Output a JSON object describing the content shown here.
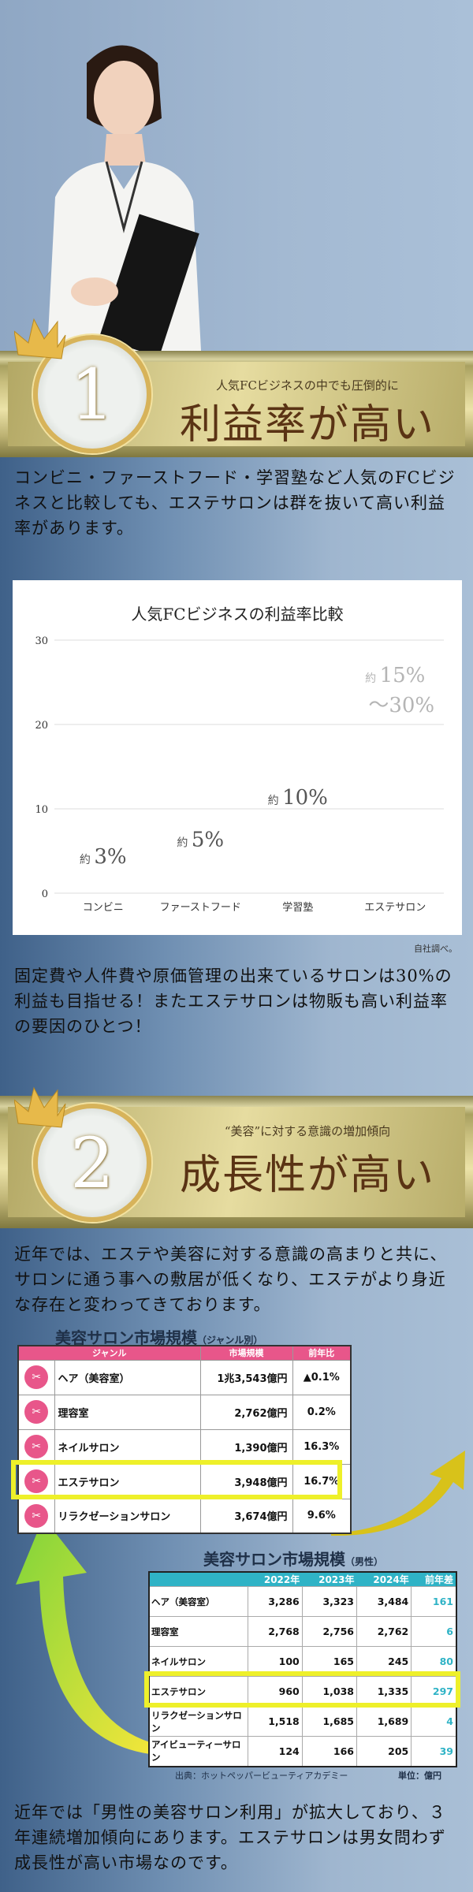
{
  "section1": {
    "number": "1",
    "subtitle": "人気FCビジネスの中でも圧倒的に",
    "title": "利益率が高い",
    "paragraph": "コンビニ・ファーストフード・学習塾など人気のFCビジネスと比較しても、エステサロンは群を抜いて高い利益率があります。",
    "source": "自社調べ。",
    "paragraph2": "固定費や人件費や原価管理の出来ているサロンは30%の利益も目指せる！またエステサロンは物販も高い利益率の要因のひとつ！"
  },
  "chart_data": {
    "type": "bar",
    "title": "人気FCビジネスの利益率比較",
    "categories": [
      "コンビニ",
      "ファーストフード",
      "学習塾",
      "エステサロン"
    ],
    "values": [
      3,
      5,
      10,
      [
        15,
        30
      ]
    ],
    "data_labels": [
      {
        "prefix": "約",
        "value": "3%"
      },
      {
        "prefix": "約",
        "value": "5%"
      },
      {
        "prefix": "約",
        "value": "10%"
      },
      {
        "prefix": "約",
        "value": "15%",
        "value2": "～30%"
      }
    ],
    "ylim": [
      0,
      30
    ],
    "yticks": [
      "0",
      "10",
      "20",
      "30"
    ],
    "grid": true
  },
  "section2": {
    "number": "2",
    "subtitle": "“美容”に対する意識の増加傾向",
    "title": "成長性が高い",
    "paragraph": "近年では、エステや美容に対する意識の高まりと共に、サロンに通う事への敷居が低くなり、エステがより身近な存在と変わってきております。",
    "table1": {
      "title": "美容サロン市場規模",
      "title_note": "（ジャンル別）",
      "headers": [
        "ジャンル",
        "市場規模",
        "前年比"
      ],
      "rows": [
        {
          "icon": "scissors-comb-icon",
          "genre": "ヘア（美容室）",
          "size": "1兆3,543億円",
          "ratio": "▲0.1%"
        },
        {
          "icon": "scissors-comb-icon",
          "genre": "理容室",
          "size": "2,762億円",
          "ratio": "0.2%"
        },
        {
          "icon": "nail-icon",
          "genre": "ネイルサロン",
          "size": "1,390億円",
          "ratio": "16.3%"
        },
        {
          "icon": "face-care-icon",
          "genre": "エステサロン",
          "size": "3,948億円",
          "ratio": "16.7%"
        },
        {
          "icon": "relaxation-icon",
          "genre": "リラクゼーションサロン",
          "size": "3,674億円",
          "ratio": "9.6%"
        }
      ]
    },
    "table2": {
      "title": "美容サロン市場規模",
      "title_note": "（男性）",
      "headers": [
        "",
        "2022年",
        "2023年",
        "2024年",
        "前年差"
      ],
      "rows": [
        [
          "ヘア（美容室）",
          "3,286",
          "3,323",
          "3,484",
          "161"
        ],
        [
          "理容室",
          "2,768",
          "2,756",
          "2,762",
          "6"
        ],
        [
          "ネイルサロン",
          "100",
          "165",
          "245",
          "80"
        ],
        [
          "エステサロン",
          "960",
          "1,038",
          "1,335",
          "297"
        ],
        [
          "リラクゼーションサロン",
          "1,518",
          "1,685",
          "1,689",
          "4"
        ],
        [
          "アイビューティーサロン",
          "124",
          "166",
          "205",
          "39"
        ]
      ]
    },
    "source": "出典：ホットペッパービューティアカデミー",
    "unit": "単位：億円",
    "paragraph2": "近年では「男性の美容サロン利用」が拡大しており、３年連続増加傾向にあります。エステサロンは男女問わず成長性が高い市場なのです。"
  },
  "colors": {
    "pink": "#e8568a",
    "teal": "#2fb3c6",
    "highlight": "#eef02a",
    "gold": "#d7b35a",
    "brown": "#5a3314"
  }
}
